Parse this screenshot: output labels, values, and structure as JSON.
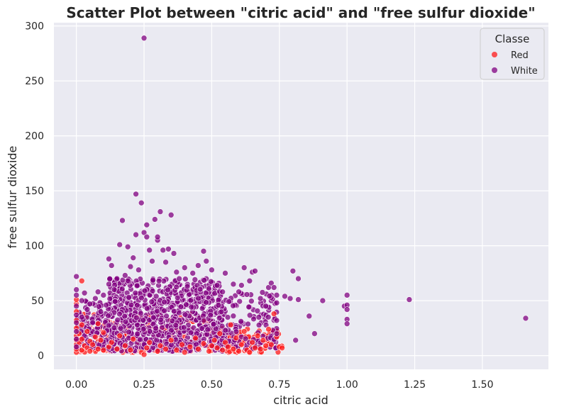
{
  "chart_data": {
    "type": "scatter",
    "title": "Scatter Plot between \"citric acid\" and \"free sulfur dioxide\"",
    "xlabel": "citric acid",
    "ylabel": "free sulfur dioxide",
    "xlim": [
      -0.083,
      1.744
    ],
    "ylim": [
      -12.5,
      303
    ],
    "xticks": [
      0.0,
      0.25,
      0.5,
      0.75,
      1.0,
      1.25,
      1.5
    ],
    "xtick_labels": [
      "0.00",
      "0.25",
      "0.50",
      "0.75",
      "1.00",
      "1.25",
      "1.50"
    ],
    "yticks": [
      0,
      50,
      100,
      150,
      200,
      250,
      300
    ],
    "ytick_labels": [
      "0",
      "50",
      "100",
      "150",
      "200",
      "250",
      "300"
    ],
    "grid": true,
    "legend": {
      "title": "Classe",
      "placement": "top-right"
    },
    "series": [
      {
        "name": "Red",
        "color": "#ff1a1a",
        "points": [
          [
            0.0,
            3
          ],
          [
            0.0,
            6
          ],
          [
            0.0,
            10
          ],
          [
            0.0,
            14
          ],
          [
            0.0,
            18
          ],
          [
            0.0,
            25
          ],
          [
            0.0,
            32
          ],
          [
            0.0,
            40
          ],
          [
            0.0,
            47
          ],
          [
            0.0,
            51
          ],
          [
            0.01,
            12
          ],
          [
            0.01,
            20
          ],
          [
            0.02,
            5
          ],
          [
            0.02,
            15
          ],
          [
            0.02,
            28
          ],
          [
            0.02,
            68
          ],
          [
            0.03,
            9
          ],
          [
            0.04,
            7
          ],
          [
            0.04,
            22
          ],
          [
            0.05,
            4
          ],
          [
            0.05,
            13
          ],
          [
            0.06,
            10
          ],
          [
            0.07,
            17
          ],
          [
            0.08,
            6
          ],
          [
            0.08,
            29
          ],
          [
            0.09,
            14
          ],
          [
            0.1,
            5
          ],
          [
            0.1,
            21
          ],
          [
            0.12,
            8
          ],
          [
            0.13,
            12
          ],
          [
            0.15,
            6
          ],
          [
            0.16,
            18
          ],
          [
            0.18,
            9
          ],
          [
            0.2,
            5
          ],
          [
            0.21,
            15
          ],
          [
            0.24,
            3
          ],
          [
            0.25,
            1
          ],
          [
            0.26,
            7
          ],
          [
            0.27,
            12
          ],
          [
            0.3,
            4
          ],
          [
            0.31,
            9
          ],
          [
            0.33,
            6
          ],
          [
            0.35,
            14
          ],
          [
            0.37,
            5
          ],
          [
            0.39,
            10
          ],
          [
            0.4,
            3
          ],
          [
            0.42,
            8
          ],
          [
            0.44,
            16
          ],
          [
            0.45,
            6
          ],
          [
            0.47,
            11
          ],
          [
            0.49,
            4
          ],
          [
            0.5,
            9
          ],
          [
            0.51,
            14
          ],
          [
            0.52,
            7
          ],
          [
            0.53,
            20
          ],
          [
            0.54,
            5
          ],
          [
            0.55,
            12
          ],
          [
            0.56,
            8
          ],
          [
            0.57,
            28
          ],
          [
            0.58,
            6
          ],
          [
            0.59,
            16
          ],
          [
            0.6,
            4
          ],
          [
            0.61,
            10
          ],
          [
            0.62,
            22
          ],
          [
            0.63,
            5
          ],
          [
            0.64,
            3
          ],
          [
            0.65,
            12
          ],
          [
            0.66,
            7
          ],
          [
            0.67,
            18
          ],
          [
            0.68,
            6
          ],
          [
            0.69,
            14
          ],
          [
            0.7,
            9
          ],
          [
            0.71,
            24
          ],
          [
            0.72,
            10
          ],
          [
            0.73,
            38
          ],
          [
            0.74,
            17
          ],
          [
            0.75,
            8
          ],
          [
            0.76,
            7
          ]
        ]
      },
      {
        "name": "White",
        "color": "#800080",
        "points": [
          [
            0.0,
            72
          ],
          [
            0.0,
            60
          ],
          [
            0.0,
            55
          ],
          [
            0.0,
            45
          ],
          [
            0.0,
            37
          ],
          [
            0.0,
            30
          ],
          [
            0.0,
            22
          ],
          [
            0.0,
            15
          ],
          [
            0.0,
            8
          ],
          [
            0.02,
            50
          ],
          [
            0.02,
            35
          ],
          [
            0.03,
            57
          ],
          [
            0.04,
            42
          ],
          [
            0.05,
            47
          ],
          [
            0.06,
            30
          ],
          [
            0.07,
            52
          ],
          [
            0.08,
            58
          ],
          [
            0.09,
            40
          ],
          [
            0.1,
            55
          ],
          [
            0.11,
            46
          ],
          [
            0.12,
            65
          ],
          [
            0.12,
            88
          ],
          [
            0.13,
            82
          ],
          [
            0.14,
            60
          ],
          [
            0.15,
            70
          ],
          [
            0.16,
            101
          ],
          [
            0.17,
            123
          ],
          [
            0.18,
            73
          ],
          [
            0.19,
            99
          ],
          [
            0.2,
            81
          ],
          [
            0.21,
            89
          ],
          [
            0.22,
            110
          ],
          [
            0.22,
            147
          ],
          [
            0.23,
            78
          ],
          [
            0.24,
            139
          ],
          [
            0.25,
            289
          ],
          [
            0.25,
            112
          ],
          [
            0.26,
            119
          ],
          [
            0.26,
            108
          ],
          [
            0.27,
            96
          ],
          [
            0.28,
            86
          ],
          [
            0.29,
            124
          ],
          [
            0.3,
            105
          ],
          [
            0.3,
            108
          ],
          [
            0.31,
            131
          ],
          [
            0.32,
            96
          ],
          [
            0.33,
            85
          ],
          [
            0.34,
            97
          ],
          [
            0.35,
            128
          ],
          [
            0.36,
            93
          ],
          [
            0.37,
            76
          ],
          [
            0.38,
            70
          ],
          [
            0.4,
            80
          ],
          [
            0.41,
            63
          ],
          [
            0.43,
            75
          ],
          [
            0.45,
            82
          ],
          [
            0.47,
            95
          ],
          [
            0.48,
            86
          ],
          [
            0.5,
            78
          ],
          [
            0.52,
            64
          ],
          [
            0.54,
            58
          ],
          [
            0.55,
            75
          ],
          [
            0.58,
            65
          ],
          [
            0.6,
            58
          ],
          [
            0.61,
            64
          ],
          [
            0.62,
            80
          ],
          [
            0.64,
            68
          ],
          [
            0.65,
            76
          ],
          [
            0.66,
            77
          ],
          [
            0.68,
            52
          ],
          [
            0.7,
            45
          ],
          [
            0.71,
            62
          ],
          [
            0.72,
            66
          ],
          [
            0.73,
            62
          ],
          [
            0.74,
            55
          ],
          [
            0.74,
            48
          ],
          [
            0.74,
            32
          ],
          [
            0.74,
            20
          ],
          [
            0.77,
            54
          ],
          [
            0.79,
            52
          ],
          [
            0.8,
            77
          ],
          [
            0.81,
            14
          ],
          [
            0.82,
            70
          ],
          [
            0.82,
            51
          ],
          [
            0.86,
            36
          ],
          [
            0.88,
            20
          ],
          [
            0.91,
            50
          ],
          [
            0.99,
            45
          ],
          [
            1.0,
            55
          ],
          [
            1.0,
            46
          ],
          [
            1.0,
            42
          ],
          [
            1.0,
            33
          ],
          [
            1.0,
            29
          ],
          [
            1.23,
            51
          ],
          [
            1.66,
            34
          ]
        ]
      }
    ],
    "dense_regions": [
      {
        "series": "White",
        "x_range": [
          0.12,
          0.55
        ],
        "y_range": [
          4,
          70
        ],
        "count": 800,
        "seed": 7
      },
      {
        "series": "White",
        "x_range": [
          0.0,
          0.12
        ],
        "y_range": [
          6,
          50
        ],
        "count": 120,
        "seed": 11
      },
      {
        "series": "White",
        "x_range": [
          0.55,
          0.74
        ],
        "y_range": [
          6,
          58
        ],
        "count": 110,
        "seed": 13
      },
      {
        "series": "Red",
        "x_range": [
          0.0,
          0.5
        ],
        "y_range": [
          3,
          38
        ],
        "count": 180,
        "seed": 17
      },
      {
        "series": "Red",
        "x_range": [
          0.5,
          0.76
        ],
        "y_range": [
          3,
          25
        ],
        "count": 90,
        "seed": 19
      }
    ]
  }
}
